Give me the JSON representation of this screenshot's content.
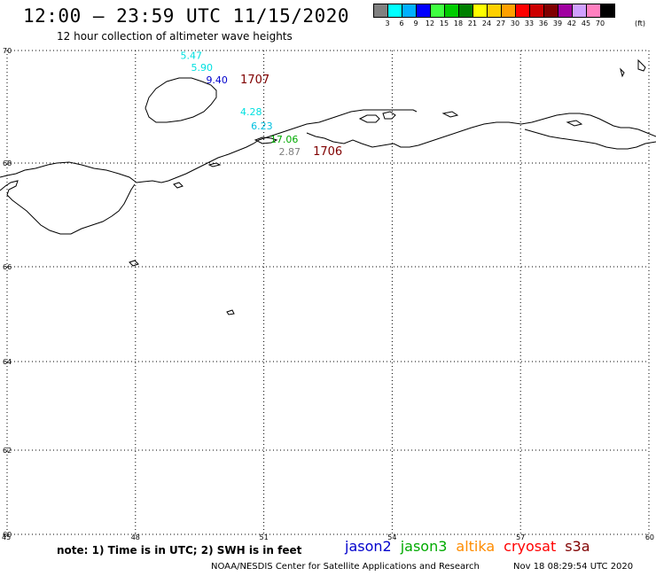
{
  "header": {
    "title": "12:00 – 23:59 UTC 11/15/2020",
    "subtitle": "12 hour collection of altimeter wave heights"
  },
  "colorbar": {
    "colors": [
      "#808080",
      "#00ffff",
      "#00b0ff",
      "#0000ff",
      "#40ff40",
      "#00cc00",
      "#008000",
      "#ffff00",
      "#ffd000",
      "#ffa000",
      "#ff0000",
      "#cc0000",
      "#800000",
      "#a000a0",
      "#d0a0ff",
      "#ff80c0",
      "#000000"
    ],
    "labels": [
      "3",
      "6",
      "9",
      "12",
      "15",
      "18",
      "21",
      "24",
      "27",
      "30",
      "33",
      "36",
      "39",
      "42",
      "45",
      "70"
    ],
    "unit": "(ft)"
  },
  "map": {
    "lat_ticks": [
      "70",
      "68",
      "66",
      "64",
      "62",
      "60"
    ],
    "lon_ticks": [
      "45",
      "48",
      "51",
      "54",
      "57",
      "60"
    ],
    "wave_heights": [
      {
        "value": "5.47",
        "color": "#00e0e0",
        "lon": 49.05,
        "lat": 69.85
      },
      {
        "value": "5.90",
        "color": "#00e0e0",
        "lon": 49.3,
        "lat": 69.64
      },
      {
        "value": "9.40",
        "color": "#0000cc",
        "lon": 49.65,
        "lat": 69.42
      },
      {
        "value": "4.28",
        "color": "#00e0e0",
        "lon": 50.45,
        "lat": 68.85
      },
      {
        "value": "6.23",
        "color": "#00c0e0",
        "lon": 50.7,
        "lat": 68.6
      },
      {
        "value": "17.06",
        "color": "#00aa00",
        "lon": 51.15,
        "lat": 68.36
      },
      {
        "value": "2.87",
        "color": "#808080",
        "lon": 51.35,
        "lat": 68.14
      }
    ],
    "pass_ids": [
      {
        "value": "1707",
        "color": "#800000",
        "lon": 50.45,
        "lat": 69.42
      },
      {
        "value": "1706",
        "color": "#800000",
        "lon": 52.15,
        "lat": 68.14
      }
    ]
  },
  "footer": {
    "note": "note:  1) Time is in UTC;  2) SWH is in feet",
    "satellites": [
      {
        "name": "jason2",
        "color": "#0000cc"
      },
      {
        "name": "jason3",
        "color": "#00aa00"
      },
      {
        "name": "altika",
        "color": "#ff8c00"
      },
      {
        "name": "cryosat",
        "color": "#ff0000"
      },
      {
        "name": "s3a",
        "color": "#800000"
      }
    ],
    "credit": "NOAA/NESDIS Center for Satellite Applications and Research",
    "timestamp": "Nov 18 08:29:54 UTC 2020"
  }
}
